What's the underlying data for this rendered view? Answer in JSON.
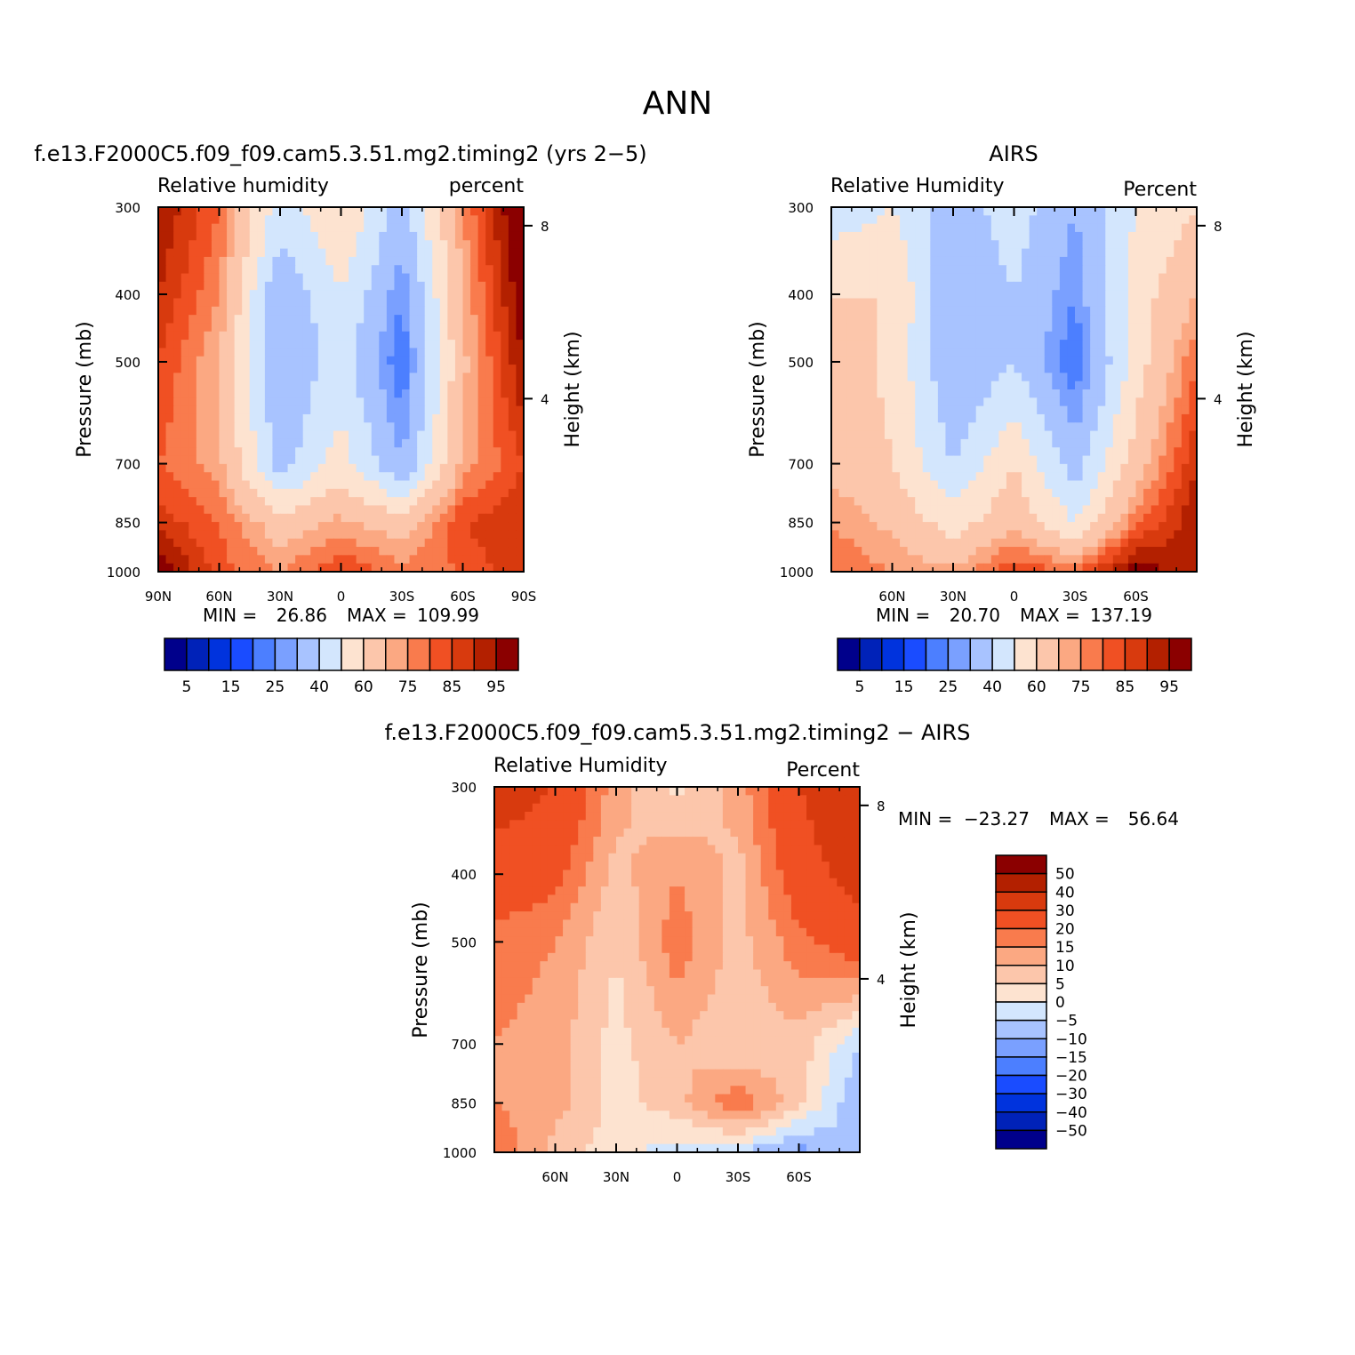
{
  "figure": {
    "title": "ANN"
  },
  "colors": {
    "abs_levels": [
      "#00008b",
      "#0022b8",
      "#0033dd",
      "#1a4cff",
      "#4c7fff",
      "#7aa0ff",
      "#a8c3ff",
      "#d3e6fd",
      "#fde3d0",
      "#fcc6ab",
      "#fba882",
      "#f97b4d",
      "#f05023",
      "#d83a0e",
      "#b32000",
      "#8b0000"
    ],
    "diff_levels": [
      "#00008b",
      "#0022b8",
      "#0033dd",
      "#1a4cff",
      "#4c7fff",
      "#7aa0ff",
      "#a8c3ff",
      "#d3e6fd",
      "#fde3d0",
      "#fcc6ab",
      "#fba882",
      "#f97b4d",
      "#f05023",
      "#d83a0e",
      "#b32000",
      "#8b0000"
    ]
  },
  "chart_data": [
    {
      "id": "model",
      "type": "heatmap",
      "title": "f.e13.F2000C5.f09_f09.cam5.3.51.mg2.timing2 (yrs 2−5)",
      "field_label": "Relative humidity",
      "units_label": "percent",
      "ylabel": "Pressure (mb)",
      "ylabel_right": "Height (km)",
      "x_ticks": [
        "90N",
        "60N",
        "30N",
        "0",
        "30S",
        "60S",
        "90S"
      ],
      "y_ticks": [
        "300",
        "400",
        "500",
        "700",
        "850",
        "1000"
      ],
      "y_ticks_right": [
        "8",
        "4"
      ],
      "stats": {
        "min_label": "MIN =",
        "min": "26.86",
        "max_label": "MAX =",
        "max": "109.99"
      },
      "colorbar_labels": [
        "5",
        "15",
        "25",
        "40",
        "60",
        "75",
        "85",
        "95"
      ],
      "x": [
        90,
        60,
        30,
        0,
        -30,
        -60,
        -90
      ],
      "p": [
        300,
        400,
        500,
        700,
        850,
        1000
      ],
      "values": [
        [
          95,
          80,
          45,
          60,
          35,
          75,
          105
        ],
        [
          90,
          75,
          30,
          50,
          25,
          70,
          100
        ],
        [
          85,
          70,
          30,
          45,
          20,
          68,
          95
        ],
        [
          80,
          72,
          35,
          55,
          30,
          72,
          85
        ],
        [
          88,
          80,
          65,
          72,
          65,
          85,
          90
        ],
        [
          100,
          82,
          75,
          85,
          78,
          80,
          90
        ]
      ]
    },
    {
      "id": "obs",
      "type": "heatmap",
      "title": "AIRS",
      "field_label": "Relative Humidity",
      "units_label": "Percent",
      "ylabel": "Pressure (mb)",
      "ylabel_right": "Height (km)",
      "x_ticks": [
        "60N",
        "30N",
        "0",
        "30S",
        "60S"
      ],
      "y_ticks": [
        "300",
        "400",
        "500",
        "700",
        "850",
        "1000"
      ],
      "y_ticks_right": [
        "8",
        "4"
      ],
      "stats": {
        "min_label": "MIN =",
        "min": "20.70",
        "max_label": "MAX =",
        "max": "137.19"
      },
      "colorbar_labels": [
        "5",
        "15",
        "25",
        "40",
        "60",
        "75",
        "85",
        "95"
      ],
      "x": [
        90,
        60,
        30,
        0,
        -30,
        -60,
        -90
      ],
      "p": [
        300,
        400,
        500,
        700,
        850,
        1000
      ],
      "values": [
        [
          45,
          50,
          35,
          45,
          30,
          50,
          60
        ],
        [
          60,
          60,
          30,
          40,
          25,
          55,
          70
        ],
        [
          65,
          58,
          30,
          40,
          20,
          55,
          80
        ],
        [
          68,
          60,
          40,
          60,
          35,
          65,
          90
        ],
        [
          75,
          68,
          55,
          68,
          50,
          78,
          95
        ],
        [
          80,
          75,
          72,
          85,
          80,
          100,
          90
        ]
      ]
    },
    {
      "id": "diff",
      "type": "heatmap",
      "title": "f.e13.F2000C5.f09_f09.cam5.3.51.mg2.timing2 − AIRS",
      "field_label": "Relative Humidity",
      "units_label": "Percent",
      "ylabel": "Pressure (mb)",
      "ylabel_right": "Height (km)",
      "x_ticks": [
        "60N",
        "30N",
        "0",
        "30S",
        "60S"
      ],
      "y_ticks": [
        "300",
        "400",
        "500",
        "700",
        "850",
        "1000"
      ],
      "y_ticks_right": [
        "8",
        "4"
      ],
      "stats": {
        "min_label": "MIN =",
        "min": "−23.27",
        "max_label": "MAX =",
        "max": "56.64"
      },
      "colorbar_labels": [
        "50",
        "40",
        "30",
        "20",
        "15",
        "10",
        "5",
        "0",
        "−5",
        "−10",
        "−15",
        "−20",
        "−30",
        "−40",
        "−50"
      ],
      "x": [
        90,
        60,
        30,
        0,
        -30,
        -60,
        -90
      ],
      "p": [
        300,
        400,
        500,
        700,
        850,
        1000
      ],
      "values": [
        [
          35,
          30,
          12,
          4,
          12,
          30,
          40
        ],
        [
          25,
          22,
          8,
          15,
          8,
          25,
          35
        ],
        [
          18,
          15,
          5,
          18,
          8,
          18,
          25
        ],
        [
          15,
          12,
          3,
          10,
          5,
          8,
          -5
        ],
        [
          15,
          12,
          3,
          8,
          20,
          6,
          -10
        ],
        [
          20,
          8,
          2,
          -3,
          -5,
          -12,
          -5
        ]
      ]
    }
  ]
}
